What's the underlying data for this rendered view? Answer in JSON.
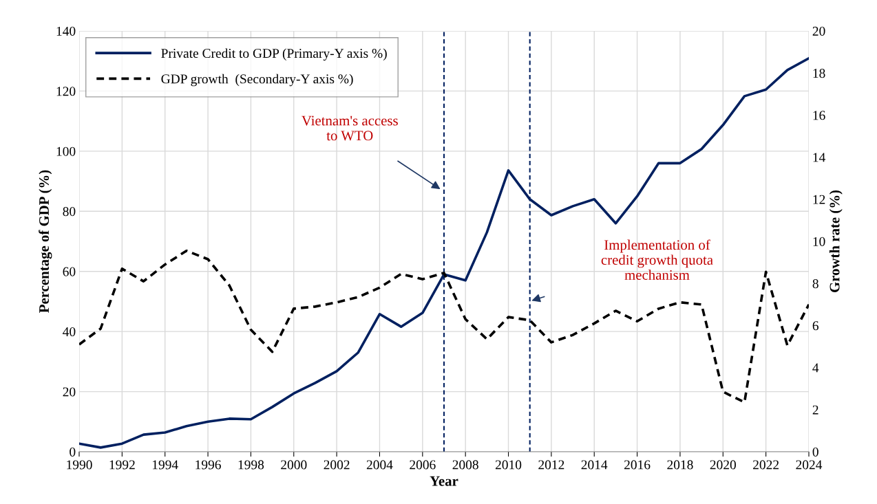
{
  "chart_data": {
    "type": "line",
    "xlabel": "Year",
    "ylabel": "Percentage of GDP (%)",
    "y2label": "Growth rate (%)",
    "x": [
      1990,
      1991,
      1992,
      1993,
      1994,
      1995,
      1996,
      1997,
      1998,
      1999,
      2000,
      2001,
      2002,
      2003,
      2004,
      2005,
      2006,
      2007,
      2008,
      2009,
      2010,
      2011,
      2012,
      2013,
      2014,
      2015,
      2016,
      2017,
      2018,
      2019,
      2020,
      2021,
      2022,
      2023,
      2024
    ],
    "series": [
      {
        "name": "Private Credit to GDP (Primary-Y axis %)",
        "color": "#002060",
        "line_style": "solid",
        "values": [
          2.7,
          1.4,
          2.7,
          5.7,
          6.4,
          8.5,
          10,
          11,
          10.8,
          14.9,
          19.4,
          22.9,
          26.8,
          33,
          45.8,
          41.6,
          46.2,
          59,
          57,
          73,
          93.6,
          84,
          78.7,
          81.7,
          84,
          76,
          85,
          96,
          96,
          100.7,
          108.7,
          118.3,
          120.5,
          127,
          130.9
        ]
      },
      {
        "name": "GDP growth  (Secondary-Y axis %)",
        "color": "#000000",
        "line_style": "dashed",
        "axis": "y2",
        "values": [
          5.1,
          5.85,
          8.7,
          8.1,
          8.9,
          9.55,
          9.15,
          7.9,
          5.8,
          4.75,
          6.8,
          6.9,
          7.1,
          7.35,
          7.8,
          8.45,
          8.2,
          8.5,
          6.3,
          5.35,
          6.4,
          6.25,
          5.2,
          5.55,
          6.1,
          6.7,
          6.2,
          6.8,
          7.1,
          7.0,
          2.85,
          2.35,
          8.55,
          5.05,
          7.0
        ]
      }
    ],
    "xlim": [
      1990,
      2024
    ],
    "xticks": [
      1990,
      1992,
      1994,
      1996,
      1998,
      2000,
      2002,
      2004,
      2006,
      2008,
      2010,
      2012,
      2014,
      2016,
      2018,
      2020,
      2022,
      2024
    ],
    "ylim": [
      0,
      140
    ],
    "yticks": [
      0,
      20,
      40,
      60,
      80,
      100,
      120,
      140
    ],
    "y2lim": [
      0,
      20
    ],
    "y2ticks": [
      0,
      2,
      4,
      6,
      8,
      10,
      12,
      14,
      16,
      18,
      20
    ],
    "ref_lines": [
      {
        "axis": "x",
        "value": 2007,
        "color": "#002060",
        "line_style": "dashed"
      },
      {
        "axis": "x",
        "value": 2011,
        "color": "#002060",
        "line_style": "dashed"
      }
    ],
    "annotations": [
      "Vietnam's access\nto WTO",
      "Implementation of\ncredit growth quota\nmechanism"
    ],
    "grid": true,
    "legend": "top left",
    "marker": "none"
  }
}
